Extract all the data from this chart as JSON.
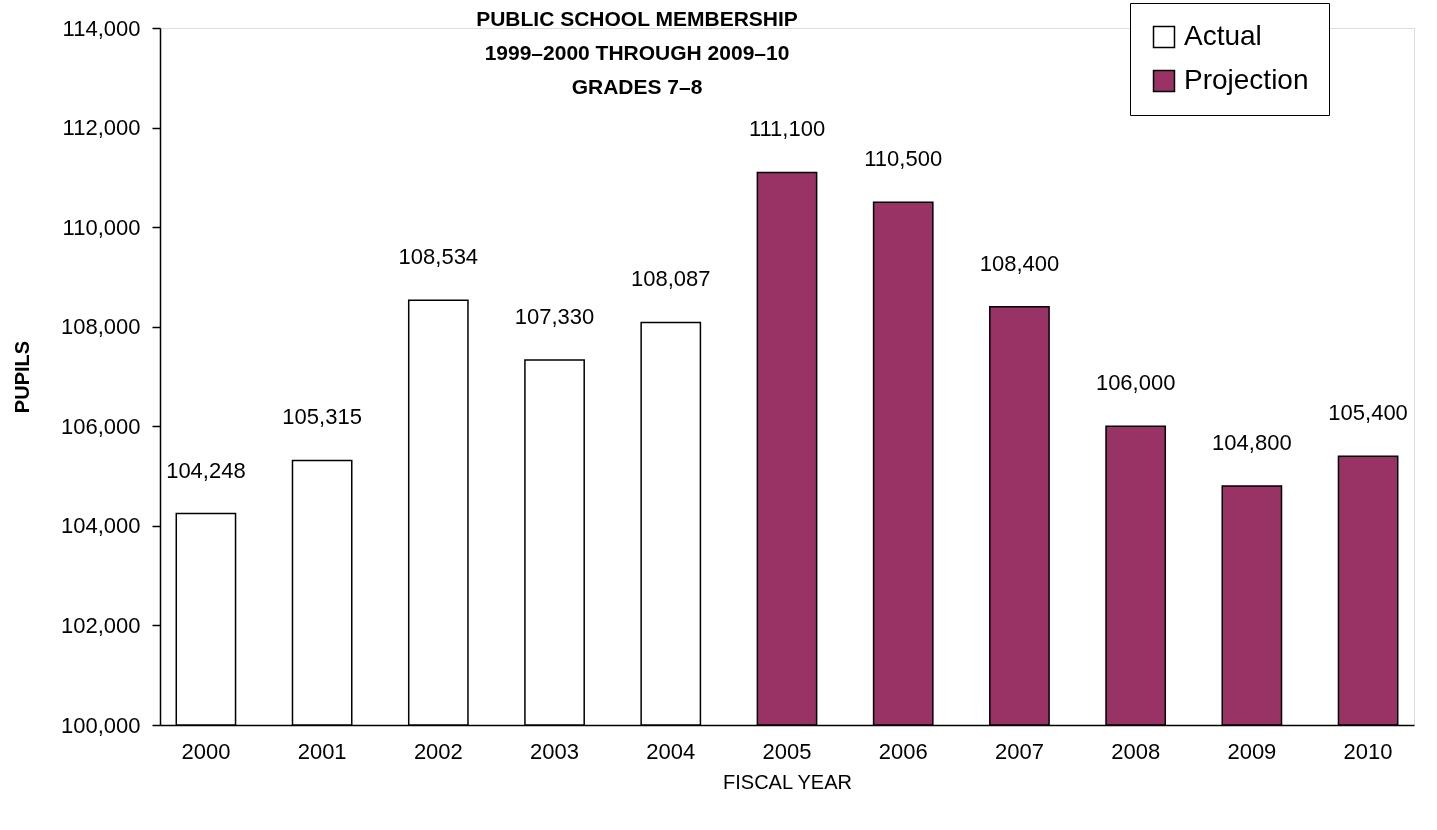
{
  "chart_data": {
    "type": "bar",
    "title": "PUBLIC SCHOOL MEMBERSHIP\n1999–2000 THROUGH 2009–10\nGRADES 7–8",
    "xlabel": "FISCAL YEAR",
    "ylabel": "PUPILS",
    "categories": [
      "2000",
      "2001",
      "2002",
      "2003",
      "2004",
      "2005",
      "2006",
      "2007",
      "2008",
      "2009",
      "2010"
    ],
    "series": [
      {
        "name": "Actual",
        "color": "#ffffff",
        "values": [
          104248,
          105315,
          108534,
          107330,
          108087,
          null,
          null,
          null,
          null,
          null,
          null
        ],
        "value_labels": [
          "104,248",
          "105,315",
          "108,534",
          "107,330",
          "108,087",
          null,
          null,
          null,
          null,
          null,
          null
        ]
      },
      {
        "name": "Projection",
        "color": "#993366",
        "values": [
          null,
          null,
          null,
          null,
          null,
          111100,
          110500,
          108400,
          106000,
          104800,
          105400
        ],
        "value_labels": [
          null,
          null,
          null,
          null,
          null,
          "111,100",
          "110,500",
          "108,400",
          "106,000",
          "104,800",
          "105,400"
        ]
      }
    ],
    "ylim": [
      100000,
      114000
    ],
    "yticks": [
      {
        "value": 100000,
        "label": "100,000"
      },
      {
        "value": 102000,
        "label": "102,000"
      },
      {
        "value": 104000,
        "label": "104,000"
      },
      {
        "value": 106000,
        "label": "106,000"
      },
      {
        "value": 108000,
        "label": "108,000"
      },
      {
        "value": 110000,
        "label": "110,000"
      },
      {
        "value": 112000,
        "label": "112,000"
      },
      {
        "value": 114000,
        "label": "114,000"
      }
    ],
    "legend": "top right"
  }
}
